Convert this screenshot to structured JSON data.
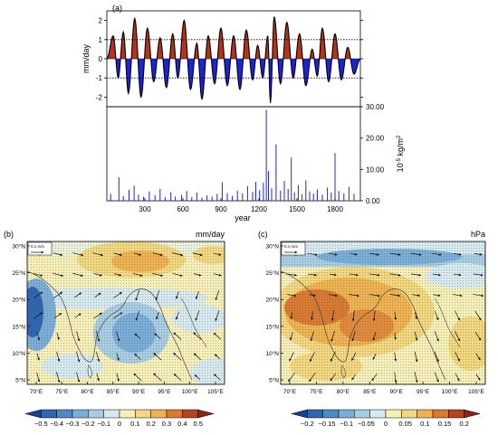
{
  "chart_data": [
    {
      "panel": "(a)",
      "type": "area",
      "ylabel": "mm/day",
      "xlim": [
        0,
        2000
      ],
      "ylim": [
        -2.5,
        2.5
      ],
      "yticks": [
        "2",
        "1",
        "0",
        "-1",
        "-2"
      ],
      "reference_lines": [
        1,
        -1
      ],
      "peaks": [
        {
          "x": 50,
          "y": 1.2
        },
        {
          "x": 90,
          "y": -1.0
        },
        {
          "x": 130,
          "y": 1.4
        },
        {
          "x": 170,
          "y": -1.8
        },
        {
          "x": 220,
          "y": 2.1
        },
        {
          "x": 270,
          "y": -2.0
        },
        {
          "x": 320,
          "y": 1.6
        },
        {
          "x": 370,
          "y": -1.2
        },
        {
          "x": 420,
          "y": 1.1
        },
        {
          "x": 470,
          "y": -1.5
        },
        {
          "x": 520,
          "y": 1.3
        },
        {
          "x": 560,
          "y": -1.0
        },
        {
          "x": 610,
          "y": 2.0
        },
        {
          "x": 660,
          "y": -1.6
        },
        {
          "x": 710,
          "y": 0.8
        },
        {
          "x": 750,
          "y": -2.1
        },
        {
          "x": 800,
          "y": 1.2
        },
        {
          "x": 850,
          "y": -1.3
        },
        {
          "x": 900,
          "y": 1.6
        },
        {
          "x": 950,
          "y": -1.4
        },
        {
          "x": 1000,
          "y": 1.2
        },
        {
          "x": 1050,
          "y": -1.6
        },
        {
          "x": 1100,
          "y": 1.5
        },
        {
          "x": 1150,
          "y": -1.1
        },
        {
          "x": 1190,
          "y": 0.7
        },
        {
          "x": 1230,
          "y": -1.0
        },
        {
          "x": 1270,
          "y": 1.2
        },
        {
          "x": 1290,
          "y": -2.3
        },
        {
          "x": 1320,
          "y": 2.2
        },
        {
          "x": 1370,
          "y": -1.3
        },
        {
          "x": 1420,
          "y": 1.9
        },
        {
          "x": 1470,
          "y": -1.0
        },
        {
          "x": 1520,
          "y": 1.3
        },
        {
          "x": 1570,
          "y": -1.4
        },
        {
          "x": 1620,
          "y": 0.5
        },
        {
          "x": 1660,
          "y": -0.9
        },
        {
          "x": 1700,
          "y": 1.6
        },
        {
          "x": 1750,
          "y": -1.2
        },
        {
          "x": 1800,
          "y": 1.3
        },
        {
          "x": 1850,
          "y": -1.1
        },
        {
          "x": 1900,
          "y": 0.6
        },
        {
          "x": 1950,
          "y": -0.8
        }
      ]
    },
    {
      "panel": "",
      "type": "bar",
      "xlabel": "year",
      "ylabel": "10⁻⁵ kg/m²",
      "ylabel_parts": {
        "base": "10",
        "exp": "-5",
        "unit": " kg/m",
        "unit_exp": "2"
      },
      "xticks": [
        "300",
        "600",
        "900",
        "1200",
        "1500",
        "1800"
      ],
      "xtick_values": [
        300,
        600,
        900,
        1200,
        1500,
        1800
      ],
      "xlim": [
        0,
        2000
      ],
      "ylim": [
        0,
        30
      ],
      "yticks": [
        "30.00",
        "20.00",
        "10.00",
        "0.00"
      ],
      "ytick_values": [
        30,
        20,
        10,
        0
      ],
      "events": [
        {
          "x": 30,
          "y": 2.2
        },
        {
          "x": 95,
          "y": 7.5
        },
        {
          "x": 130,
          "y": 1.5
        },
        {
          "x": 175,
          "y": 3.5
        },
        {
          "x": 215,
          "y": 4.8
        },
        {
          "x": 250,
          "y": 2.0
        },
        {
          "x": 290,
          "y": 1.3
        },
        {
          "x": 335,
          "y": 3.0
        },
        {
          "x": 380,
          "y": 1.8
        },
        {
          "x": 420,
          "y": 3.8
        },
        {
          "x": 460,
          "y": 1.1
        },
        {
          "x": 505,
          "y": 2.7
        },
        {
          "x": 540,
          "y": 1.4
        },
        {
          "x": 590,
          "y": 1.9
        },
        {
          "x": 630,
          "y": 3.1
        },
        {
          "x": 670,
          "y": 1.2
        },
        {
          "x": 710,
          "y": 2.6
        },
        {
          "x": 750,
          "y": 1.0
        },
        {
          "x": 790,
          "y": 1.7
        },
        {
          "x": 830,
          "y": 1.3
        },
        {
          "x": 870,
          "y": 2.2
        },
        {
          "x": 910,
          "y": 5.9
        },
        {
          "x": 950,
          "y": 2.5
        },
        {
          "x": 990,
          "y": 1.6
        },
        {
          "x": 1030,
          "y": 3.2
        },
        {
          "x": 1070,
          "y": 2.4
        },
        {
          "x": 1110,
          "y": 4.7
        },
        {
          "x": 1150,
          "y": 2.8
        },
        {
          "x": 1175,
          "y": 6.0
        },
        {
          "x": 1205,
          "y": 3.4
        },
        {
          "x": 1235,
          "y": 5.8
        },
        {
          "x": 1258,
          "y": 29.0
        },
        {
          "x": 1275,
          "y": 9.5
        },
        {
          "x": 1300,
          "y": 4.0
        },
        {
          "x": 1335,
          "y": 18.0
        },
        {
          "x": 1370,
          "y": 3.3
        },
        {
          "x": 1400,
          "y": 6.3
        },
        {
          "x": 1430,
          "y": 3.8
        },
        {
          "x": 1455,
          "y": 13.8
        },
        {
          "x": 1480,
          "y": 2.7
        },
        {
          "x": 1510,
          "y": 5.0
        },
        {
          "x": 1540,
          "y": 2.1
        },
        {
          "x": 1570,
          "y": 6.5
        },
        {
          "x": 1600,
          "y": 3.0
        },
        {
          "x": 1630,
          "y": 2.3
        },
        {
          "x": 1660,
          "y": 3.6
        },
        {
          "x": 1700,
          "y": 2.0
        },
        {
          "x": 1740,
          "y": 4.2
        },
        {
          "x": 1770,
          "y": 2.6
        },
        {
          "x": 1800,
          "y": 15.2
        },
        {
          "x": 1830,
          "y": 3.1
        },
        {
          "x": 1870,
          "y": 2.4
        },
        {
          "x": 1910,
          "y": 4.4
        },
        {
          "x": 1950,
          "y": 2.2
        }
      ]
    },
    {
      "panel": "(b)",
      "type": "heatmap",
      "unit_label": "mm/day",
      "vector_key": "0.1 m/s",
      "xticks": [
        "70°E",
        "75°E",
        "80°E",
        "85°E",
        "90°E",
        "95°E",
        "100°E",
        "105°E"
      ],
      "yticks": [
        "30°N",
        "25°N",
        "20°N",
        "15°N",
        "10°N",
        "5°N"
      ],
      "colorbar_ticks": [
        "−0.5",
        "−0.4",
        "−0.3",
        "−0.2",
        "−0.1",
        "0",
        "0.1",
        "0.2",
        "0.3",
        "0.4",
        "0.5"
      ],
      "colorbar_colors": [
        "#1a3f8f",
        "#2f66b0",
        "#4e8ac4",
        "#7aaed6",
        "#a8cde3",
        "#d6e9ef",
        "#f6efb7",
        "#f3d77e",
        "#eeb250",
        "#d97a32",
        "#b5431f",
        "#8c2414"
      ]
    },
    {
      "panel": "(c)",
      "type": "heatmap",
      "unit_label": "hPa",
      "vector_key": "0.1 m/s",
      "xticks": [
        "70°E",
        "75°E",
        "80°E",
        "85°E",
        "90°E",
        "95°E",
        "100°E",
        "105°E"
      ],
      "yticks": [
        "30°N",
        "25°N",
        "20°N",
        "15°N",
        "10°N",
        "5°N"
      ],
      "colorbar_ticks": [
        "−0.2",
        "−0.15",
        "−0.1",
        "−0.05",
        "0",
        "0.05",
        "0.1",
        "0.15",
        "0.2"
      ],
      "colorbar_colors": [
        "#1a3f8f",
        "#2f66b0",
        "#4e8ac4",
        "#7aaed6",
        "#a8cde3",
        "#d6e9ef",
        "#f6efb7",
        "#f3d77e",
        "#eeb250",
        "#d97a32",
        "#b5431f",
        "#8c2414"
      ]
    }
  ]
}
